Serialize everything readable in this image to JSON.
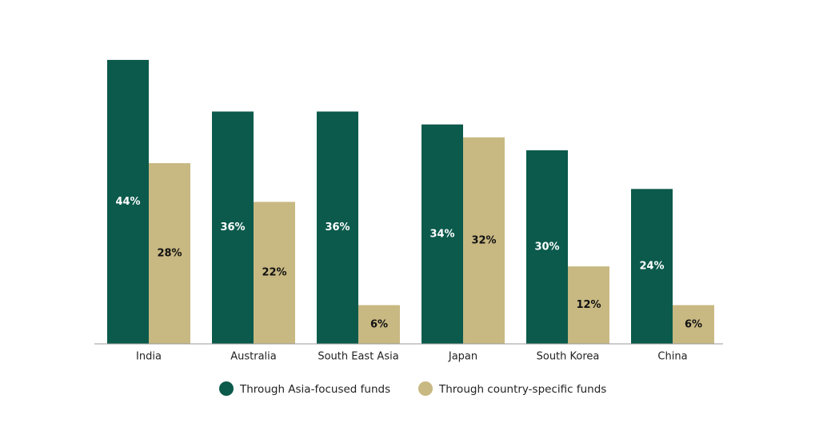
{
  "chart_data": {
    "type": "bar",
    "categories": [
      "India",
      "Australia",
      "South East Asia",
      "Japan",
      "South Korea",
      "China"
    ],
    "series": [
      {
        "name": "Through Asia-focused funds",
        "color": "#0b5a4c",
        "label_color": "#ffffff",
        "values": [
          44,
          36,
          36,
          34,
          30,
          24
        ],
        "value_labels": [
          "44%",
          "36%",
          "36%",
          "34%",
          "30%",
          "24%"
        ]
      },
      {
        "name": "Through country-specific funds",
        "color": "#c8b882",
        "label_color": "#111111",
        "values": [
          28,
          22,
          6,
          32,
          12,
          6
        ],
        "value_labels": [
          "28%",
          "22%",
          "6%",
          "32%",
          "12%",
          "6%"
        ]
      }
    ],
    "legend": "bottom"
  }
}
